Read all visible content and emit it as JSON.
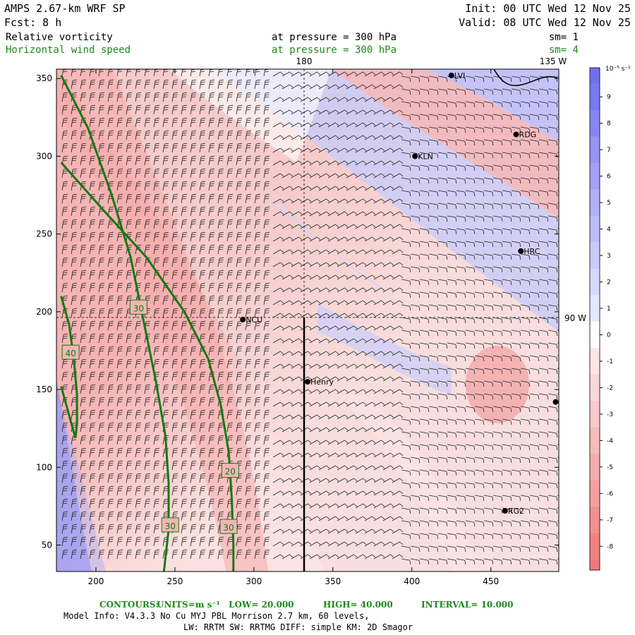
{
  "header": {
    "model": "AMPS 2.67-km WRF SP",
    "forecast": "Fcst:    8 h",
    "init": "Init: 00 UTC Wed 12 Nov 25",
    "valid": "Valid: 08 UTC Wed 12 Nov 25",
    "field1_name": "Relative vorticity",
    "field1_level": "at pressure =  300 hPa",
    "field1_sm": "sm= 1",
    "field2_name": "Horizontal wind speed",
    "field2_level": "at pressure =  300 hPa",
    "field2_sm": "sm= 4"
  },
  "map_labels": {
    "top_180": "180",
    "top_135w": "135 W",
    "right_90w": "90 W"
  },
  "stations": [
    {
      "name": "LVI",
      "x": 425,
      "y": 352
    },
    {
      "name": "RDG",
      "x": 466,
      "y": 314
    },
    {
      "name": "KLN",
      "x": 402,
      "y": 300
    },
    {
      "name": "HRC",
      "x": 469,
      "y": 239
    },
    {
      "name": "NCU",
      "x": 293,
      "y": 195
    },
    {
      "name": "Henry",
      "x": 334,
      "y": 155
    },
    {
      "name": "",
      "x": 491,
      "y": 142
    },
    {
      "name": "RG2",
      "x": 459,
      "y": 72
    }
  ],
  "colorbar": {
    "units": "10⁻⁵ s⁻¹",
    "ticks": [
      "9",
      "8",
      "7",
      "6",
      "5",
      "4",
      "3",
      "2",
      "1",
      "0",
      "-1",
      "-2",
      "-3",
      "-4",
      "-5",
      "-6",
      "-7",
      "-8"
    ],
    "colors": [
      "#7a7af0",
      "#8787f2",
      "#9595f4",
      "#a2a2f6",
      "#b0b0f7",
      "#bdbdf9",
      "#cbcbfb",
      "#d8d8fc",
      "#e6e6fe",
      "#ffffff",
      "#fce6e6",
      "#fad8d8",
      "#f9caca",
      "#f7bcbc",
      "#f5adad",
      "#f49f9f",
      "#f29090",
      "#f08282"
    ]
  },
  "footer": {
    "contours_label": "CONTOURS:",
    "units_label": "UNITS=m s⁻¹",
    "low": "LOW=  20.000",
    "high": "HIGH=  40.000",
    "interval": "INTERVAL=   10.000",
    "model_info_1": "Model Info: V4.3.3    No Cu    MYJ PBL   Morrison           2.7 km,  60 levels,",
    "model_info_2": "LW: RRTM SW: RRTMG   DIFF: simple KM: 2D Smagor"
  },
  "chart_data": {
    "type": "heatmap",
    "title": "",
    "xlabel": "",
    "ylabel": "",
    "x_ticks": [
      200,
      250,
      300,
      350,
      400,
      450
    ],
    "y_ticks": [
      50,
      100,
      150,
      200,
      250,
      300,
      350
    ],
    "xlim": [
      175,
      493
    ],
    "ylim": [
      33,
      356
    ],
    "contour_labels": [
      {
        "text": "30",
        "x": 227,
        "y": 203
      },
      {
        "text": "40",
        "x": 184,
        "y": 174
      },
      {
        "text": "20",
        "x": 285,
        "y": 98
      },
      {
        "text": "30",
        "x": 247,
        "y": 63
      },
      {
        "text": "30",
        "x": 284,
        "y": 62
      }
    ],
    "contours": [
      {
        "level": 20,
        "points": [
          [
            178,
            296
          ],
          [
            205,
            265
          ],
          [
            232,
            235
          ],
          [
            256,
            200
          ],
          [
            271,
            170
          ],
          [
            279,
            140
          ],
          [
            284,
            110
          ],
          [
            286,
            80
          ],
          [
            287,
            50
          ],
          [
            287,
            33
          ]
        ]
      },
      {
        "level": 30,
        "points": [
          [
            178,
            352
          ],
          [
            195,
            318
          ],
          [
            210,
            275
          ],
          [
            222,
            235
          ],
          [
            230,
            195
          ],
          [
            238,
            155
          ],
          [
            244,
            120
          ],
          [
            246,
            90
          ],
          [
            246,
            60
          ],
          [
            243,
            33
          ]
        ]
      },
      {
        "level": 40,
        "points": [
          [
            178,
            210
          ],
          [
            183,
            192
          ],
          [
            186,
            170
          ],
          [
            188,
            147
          ],
          [
            188,
            128
          ],
          [
            187,
            119
          ],
          [
            185,
            126
          ],
          [
            181,
            141
          ],
          [
            178,
            152
          ]
        ]
      }
    ]
  }
}
